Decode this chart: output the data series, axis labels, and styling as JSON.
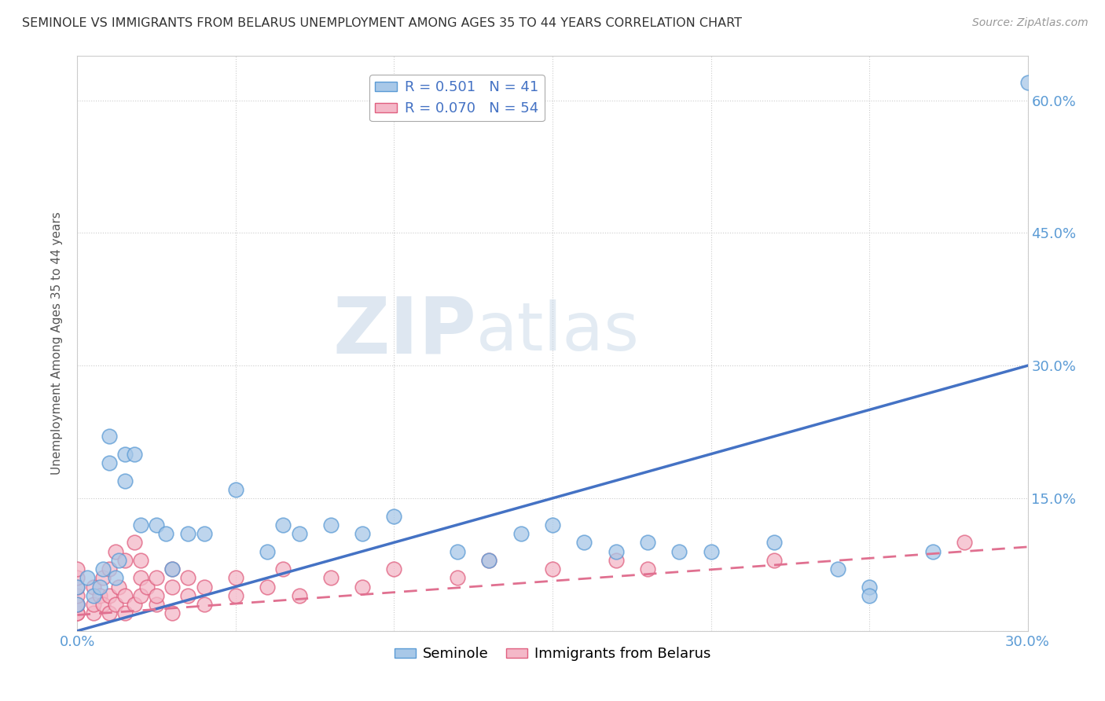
{
  "title": "SEMINOLE VS IMMIGRANTS FROM BELARUS UNEMPLOYMENT AMONG AGES 35 TO 44 YEARS CORRELATION CHART",
  "source": "Source: ZipAtlas.com",
  "ylabel": "Unemployment Among Ages 35 to 44 years",
  "xlim": [
    0.0,
    0.3
  ],
  "ylim": [
    0.0,
    0.65
  ],
  "xticks": [
    0.0,
    0.05,
    0.1,
    0.15,
    0.2,
    0.25,
    0.3
  ],
  "xticklabels": [
    "0.0%",
    "",
    "",
    "",
    "",
    "",
    "30.0%"
  ],
  "ytick_positions": [
    0.0,
    0.15,
    0.3,
    0.45,
    0.6
  ],
  "yticklabels_right": [
    "",
    "15.0%",
    "30.0%",
    "45.0%",
    "60.0%"
  ],
  "seminole_R": 0.501,
  "seminole_N": 41,
  "belarus_R": 0.07,
  "belarus_N": 54,
  "seminole_color": "#a8c8e8",
  "seminole_edge_color": "#5b9bd5",
  "seminole_line_color": "#4472c4",
  "belarus_color": "#f4b8c8",
  "belarus_edge_color": "#e06080",
  "belarus_line_color": "#e07090",
  "watermark_zip": "ZIP",
  "watermark_atlas": "atlas",
  "background_color": "#ffffff",
  "seminole_line_x": [
    0.0,
    0.3
  ],
  "seminole_line_y": [
    0.0,
    0.3
  ],
  "belarus_line_x": [
    0.0,
    0.3
  ],
  "belarus_line_y": [
    0.018,
    0.095
  ],
  "seminole_points_x": [
    0.0,
    0.0,
    0.003,
    0.005,
    0.007,
    0.008,
    0.01,
    0.01,
    0.012,
    0.013,
    0.015,
    0.015,
    0.018,
    0.02,
    0.025,
    0.028,
    0.03,
    0.035,
    0.04,
    0.05,
    0.06,
    0.065,
    0.07,
    0.08,
    0.09,
    0.1,
    0.12,
    0.13,
    0.14,
    0.15,
    0.16,
    0.17,
    0.18,
    0.19,
    0.2,
    0.22,
    0.24,
    0.25,
    0.25,
    0.27,
    0.3
  ],
  "seminole_points_y": [
    0.03,
    0.05,
    0.06,
    0.04,
    0.05,
    0.07,
    0.22,
    0.19,
    0.06,
    0.08,
    0.2,
    0.17,
    0.2,
    0.12,
    0.12,
    0.11,
    0.07,
    0.11,
    0.11,
    0.16,
    0.09,
    0.12,
    0.11,
    0.12,
    0.11,
    0.13,
    0.09,
    0.08,
    0.11,
    0.12,
    0.1,
    0.09,
    0.1,
    0.09,
    0.09,
    0.1,
    0.07,
    0.05,
    0.04,
    0.09,
    0.62
  ],
  "belarus_points_x": [
    0.0,
    0.0,
    0.0,
    0.0,
    0.0,
    0.0,
    0.0,
    0.0,
    0.005,
    0.005,
    0.005,
    0.007,
    0.008,
    0.008,
    0.01,
    0.01,
    0.01,
    0.012,
    0.012,
    0.013,
    0.015,
    0.015,
    0.015,
    0.018,
    0.018,
    0.02,
    0.02,
    0.02,
    0.022,
    0.025,
    0.025,
    0.025,
    0.03,
    0.03,
    0.03,
    0.035,
    0.035,
    0.04,
    0.04,
    0.05,
    0.05,
    0.06,
    0.065,
    0.07,
    0.08,
    0.09,
    0.1,
    0.12,
    0.13,
    0.15,
    0.17,
    0.18,
    0.22,
    0.28
  ],
  "belarus_points_y": [
    0.02,
    0.02,
    0.03,
    0.03,
    0.04,
    0.05,
    0.06,
    0.07,
    0.02,
    0.03,
    0.05,
    0.04,
    0.03,
    0.06,
    0.02,
    0.04,
    0.07,
    0.03,
    0.09,
    0.05,
    0.02,
    0.04,
    0.08,
    0.03,
    0.1,
    0.04,
    0.06,
    0.08,
    0.05,
    0.03,
    0.04,
    0.06,
    0.02,
    0.05,
    0.07,
    0.04,
    0.06,
    0.03,
    0.05,
    0.04,
    0.06,
    0.05,
    0.07,
    0.04,
    0.06,
    0.05,
    0.07,
    0.06,
    0.08,
    0.07,
    0.08,
    0.07,
    0.08,
    0.1
  ]
}
